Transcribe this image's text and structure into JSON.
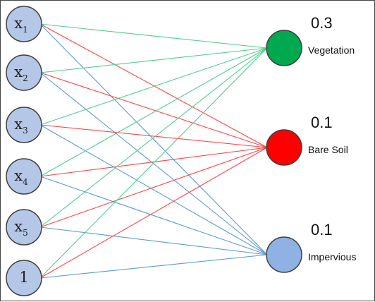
{
  "inputs": [
    {
      "base": "x",
      "sub": "1"
    },
    {
      "base": "x",
      "sub": "2"
    },
    {
      "base": "x",
      "sub": "3"
    },
    {
      "base": "x",
      "sub": "4"
    },
    {
      "base": "x",
      "sub": "5"
    },
    {
      "base": "1",
      "sub": ""
    }
  ],
  "outputs": [
    {
      "label": "Vegetation",
      "value": "0.3",
      "color": "#00a84f"
    },
    {
      "label": "Bare Soil",
      "value": "0.1",
      "color": "#ff0000"
    },
    {
      "label": "Impervious",
      "value": "0.1",
      "color": "#8fb1e3"
    }
  ],
  "style": {
    "input_fill": "#b4c7e7",
    "node_stroke": "#3f3f3f",
    "edge_colors": [
      "#4fcf8f",
      "#ff4444",
      "#5b9bd5"
    ]
  }
}
